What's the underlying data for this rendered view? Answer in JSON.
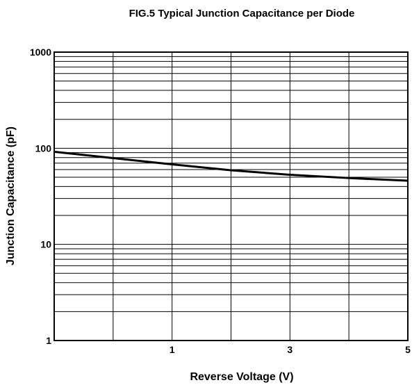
{
  "chart_data": {
    "type": "line",
    "title": "FIG.5 Typical Junction Capacitance per Diode",
    "xlabel": "Reverse Voltage (V)",
    "ylabel": "Junction Capacitance (pF)",
    "x": [
      -1,
      0,
      1,
      2,
      3,
      4,
      5
    ],
    "series": [
      {
        "name": "Junction Capacitance",
        "color": "#000000",
        "values": [
          92,
          79,
          68,
          59,
          53,
          49,
          46
        ]
      }
    ],
    "xlim": [
      -1,
      5
    ],
    "xticks": [
      1,
      3,
      5
    ],
    "ylim": [
      1,
      1000
    ],
    "yticks": [
      1,
      10,
      100,
      1000
    ],
    "ylog": true,
    "grid": true
  }
}
